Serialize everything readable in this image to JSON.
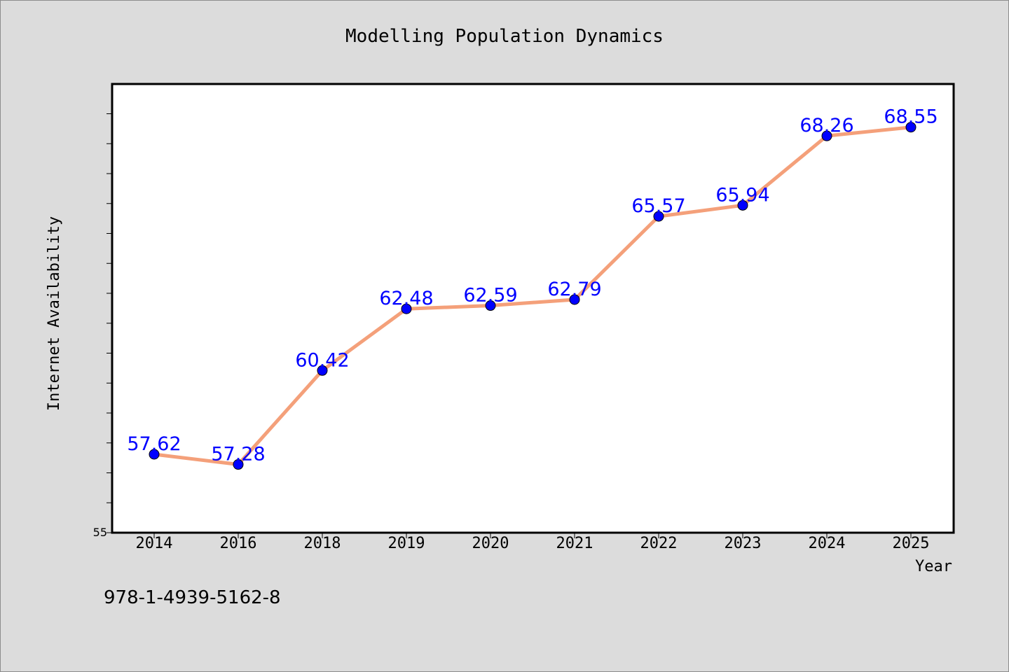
{
  "chart_data": {
    "type": "line",
    "title": "Modelling Population Dynamics",
    "xlabel": "Year",
    "ylabel": "Internet Availability",
    "categories": [
      "2014",
      "2016",
      "2018",
      "2019",
      "2020",
      "2021",
      "2022",
      "2023",
      "2024",
      "2025"
    ],
    "series": [
      {
        "values": [
          57.62,
          57.28,
          60.42,
          62.48,
          62.59,
          62.79,
          65.57,
          65.94,
          68.26,
          68.55
        ]
      }
    ],
    "data_labels": [
      "57.62",
      "57.28",
      "60.42",
      "62.48",
      "62.59",
      "62.79",
      "65.57",
      "65.94",
      "68.26",
      "68.55"
    ],
    "ylim": [
      55,
      70
    ],
    "y_tick_label": "55",
    "grid": false,
    "colors": {
      "line": "#f4a07a",
      "marker": "#0000ff",
      "label": "#0000ff",
      "background": "#dcdcdc",
      "plot": "#ffffff"
    }
  },
  "footer": {
    "code": "978-1-4939-5162-8"
  }
}
